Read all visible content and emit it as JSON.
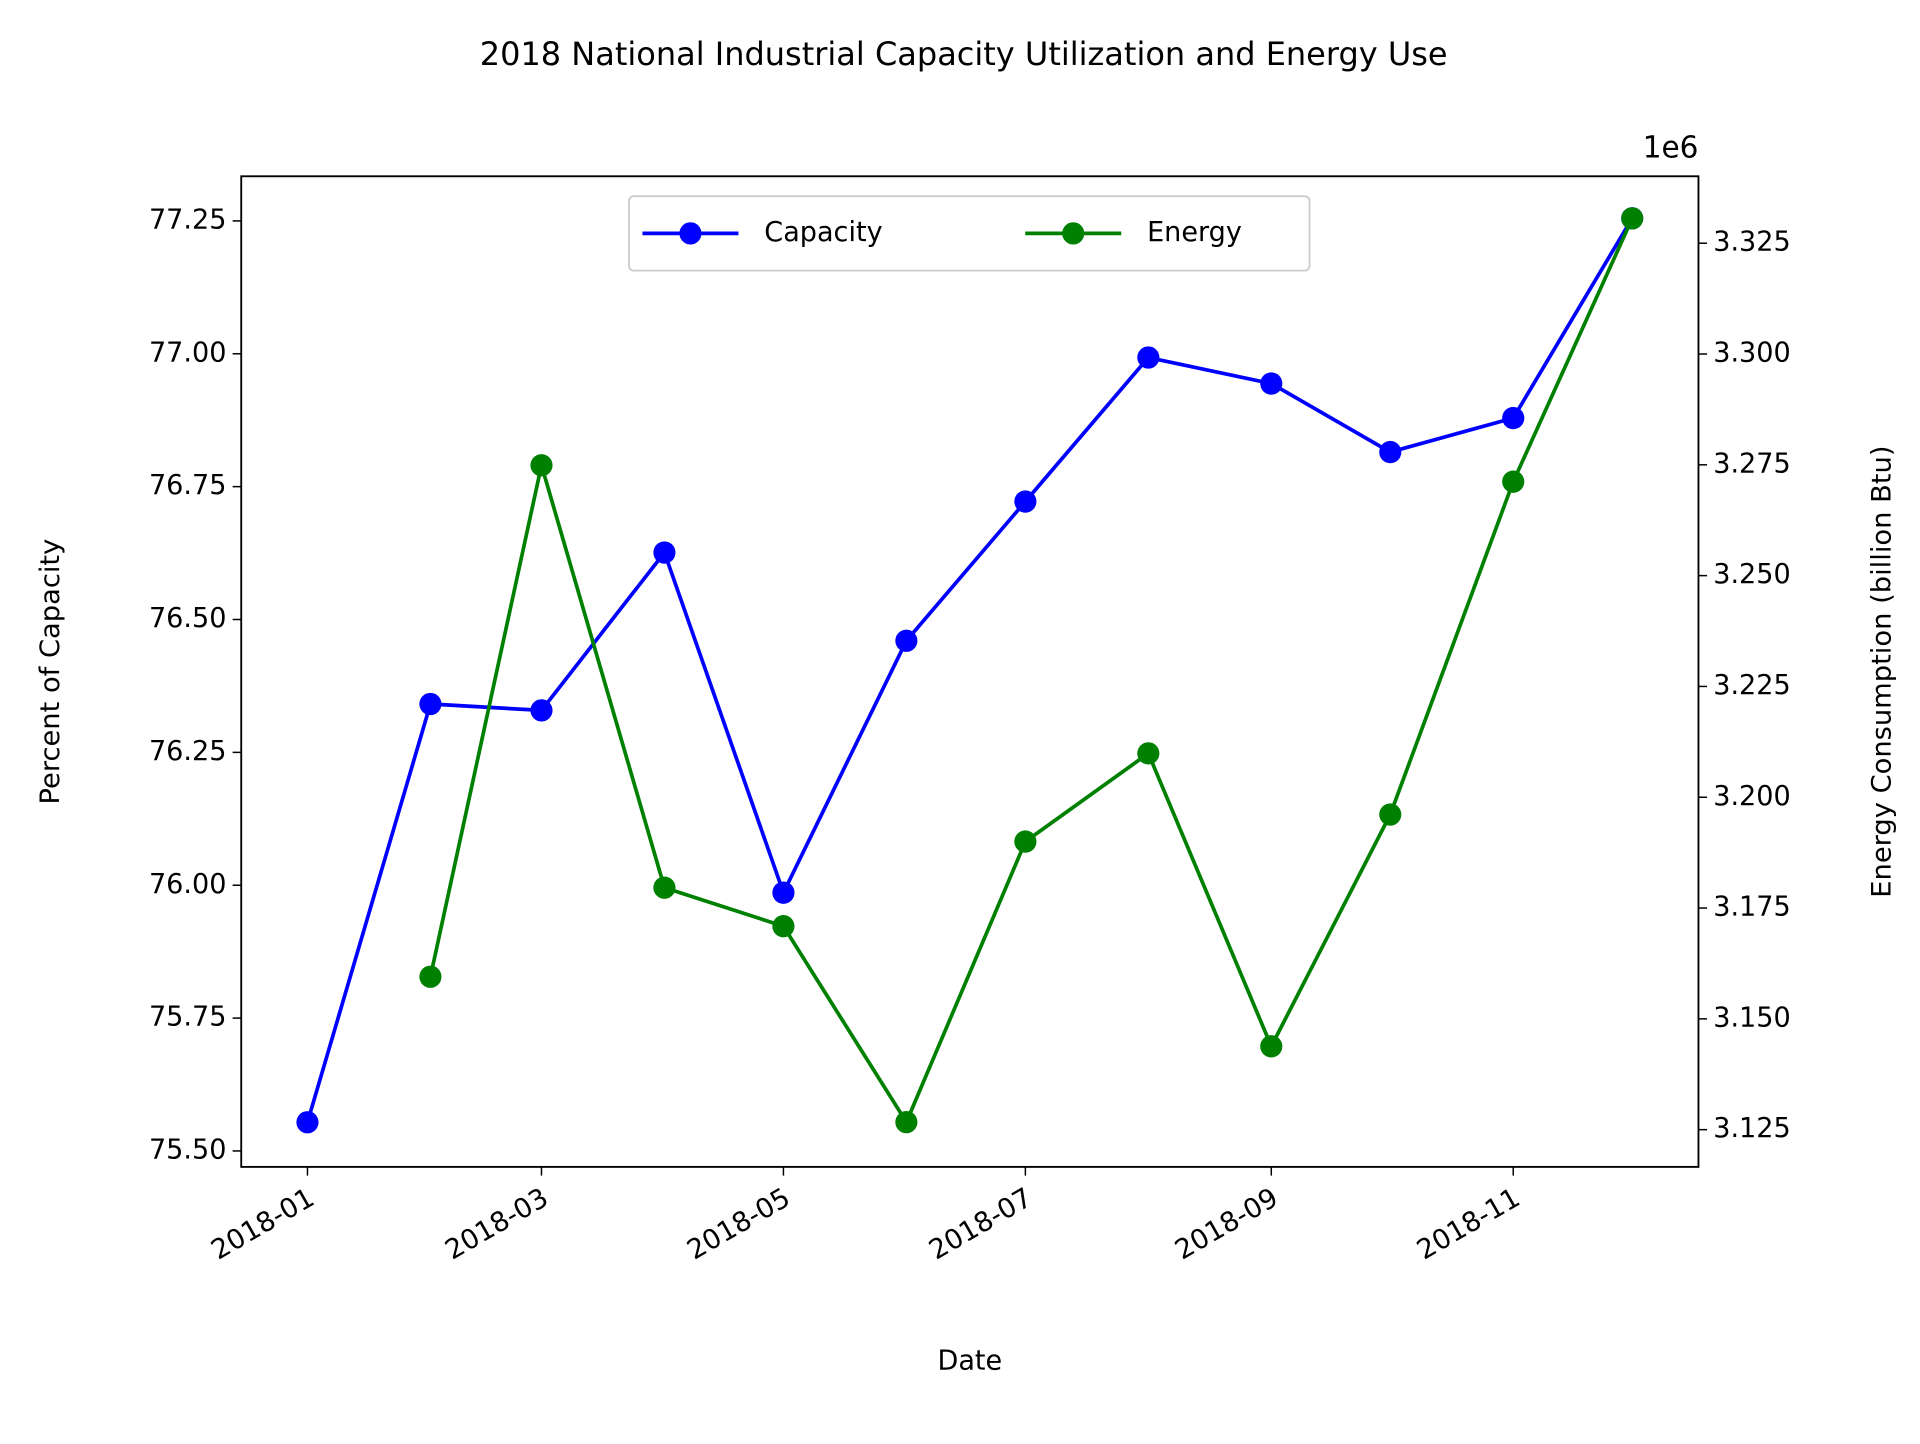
{
  "chart_data": {
    "type": "line",
    "title": "2018 National Industrial Capacity Utilization and Energy Use",
    "xlabel": "Date",
    "ylabel": "Percent of Capacity",
    "y2label": "Energy Consumption (billion Btu)",
    "y2_offset_text": "1e6",
    "x": [
      "2018-01",
      "2018-02",
      "2018-03",
      "2018-04",
      "2018-05",
      "2018-06",
      "2018-07",
      "2018-08",
      "2018-09",
      "2018-10",
      "2018-11",
      "2018-12"
    ],
    "xticks": [
      "2018-01",
      "2018-03",
      "2018-05",
      "2018-07",
      "2018-09",
      "2018-11"
    ],
    "ylim": [
      75.47,
      77.334
    ],
    "yticks": [
      {
        "value": 75.5,
        "label": "75.50"
      },
      75.75,
      {
        "value": 76,
        "label": "76.00"
      },
      76.25,
      {
        "value": 76.5,
        "label": "76.50"
      },
      76.75,
      {
        "value": 77,
        "label": "77.00"
      },
      77.25
    ],
    "y2lim": [
      3116600,
      3340100
    ],
    "y2ticks": [
      {
        "value": 3125000,
        "label": "3.125"
      },
      {
        "value": 3150000,
        "label": "3.150"
      },
      {
        "value": 3175000,
        "label": "3.175"
      },
      {
        "value": 3200000,
        "label": "3.200"
      },
      {
        "value": 3225000,
        "label": "3.225"
      },
      {
        "value": 3250000,
        "label": "3.250"
      },
      {
        "value": 3275000,
        "label": "3.275"
      },
      {
        "value": 3300000,
        "label": "3.300"
      },
      {
        "value": 3325000,
        "label": "3.325"
      }
    ],
    "legend": "upper center",
    "series": [
      {
        "name": "Capacity",
        "color": "#0000ff",
        "values": [
          75.554,
          76.341,
          76.329,
          76.626,
          75.986,
          76.46,
          76.722,
          76.993,
          76.944,
          76.815,
          76.879,
          77.255
        ]
      },
      {
        "name": "Energy",
        "color": "#008000",
        "axis": "y2",
        "values": [
          null,
          3159500,
          3274900,
          3179600,
          3170900,
          3126700,
          3190000,
          3209900,
          3143800,
          3196100,
          3271200,
          3330600
        ]
      }
    ]
  }
}
